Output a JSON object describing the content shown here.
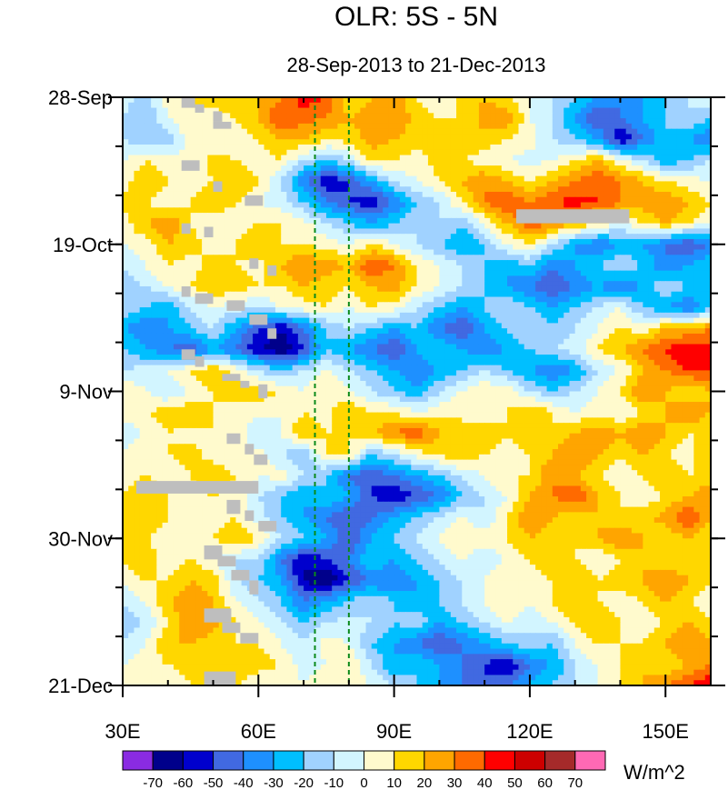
{
  "chart_data": {
    "type": "heatmap",
    "title": "OLR: 5S - 5N",
    "subtitle": "28-Sep-2013 to 21-Dec-2013",
    "x_axis": {
      "range": [
        30,
        160
      ],
      "ticks": [
        {
          "value": 30,
          "label": "30E"
        },
        {
          "value": 60,
          "label": "60E"
        },
        {
          "value": 90,
          "label": "90E"
        },
        {
          "value": 120,
          "label": "120E"
        },
        {
          "value": 150,
          "label": "150E"
        }
      ]
    },
    "y_axis": {
      "range_days": [
        0,
        84
      ],
      "direction": "top-to-bottom",
      "ticks": [
        {
          "day": 0,
          "label": "28-Sep"
        },
        {
          "day": 21,
          "label": "19-Oct"
        },
        {
          "day": 42,
          "label": "9-Nov"
        },
        {
          "day": 63,
          "label": "30-Nov"
        },
        {
          "day": 84,
          "label": "21-Dec"
        }
      ]
    },
    "reference_lines_longitude": [
      72.5,
      80
    ],
    "colorbar": {
      "units": "W/m^2",
      "levels": [
        "-70",
        "-60",
        "-50",
        "-40",
        "-30",
        "-20",
        "-10",
        "0",
        "10",
        "20",
        "30",
        "40",
        "50",
        "60",
        "70"
      ],
      "colors": [
        "#8a2be2",
        "#00008b",
        "#0000cd",
        "#4169e1",
        "#1e90ff",
        "#00bfff",
        "#a0d2ff",
        "#d2f5ff",
        "#fffacd",
        "#ffd700",
        "#ffa500",
        "#ff6a00",
        "#ff0000",
        "#cd0000",
        "#a52a2a",
        "#ff69b4"
      ]
    },
    "missing_color": "#bebebe",
    "grid_longitudes": [
      30,
      35,
      40,
      45,
      50,
      55,
      60,
      65,
      70,
      75,
      80,
      85,
      90,
      95,
      100,
      105,
      110,
      115,
      120,
      125,
      130,
      135,
      140,
      145,
      150,
      155,
      160
    ],
    "grid_days": [
      0,
      3,
      6,
      9,
      12,
      15,
      18,
      21,
      24,
      27,
      30,
      33,
      36,
      39,
      42,
      45,
      48,
      51,
      54,
      57,
      60,
      63,
      66,
      69,
      72,
      75,
      78,
      81,
      84
    ],
    "values": [
      [
        -5,
        -15,
        5,
        10,
        15,
        20,
        20,
        30,
        45,
        40,
        10,
        20,
        25,
        10,
        0,
        15,
        20,
        10,
        0,
        -10,
        -20,
        -30,
        -40,
        -30,
        -20,
        -10,
        0
      ],
      [
        -10,
        -20,
        0,
        10,
        5,
        10,
        20,
        40,
        35,
        30,
        20,
        25,
        30,
        15,
        10,
        10,
        25,
        30,
        0,
        -10,
        -30,
        -50,
        -40,
        -30,
        -20,
        -10,
        -20
      ],
      [
        -10,
        -20,
        -15,
        5,
        0,
        5,
        10,
        20,
        20,
        10,
        15,
        25,
        20,
        15,
        10,
        20,
        15,
        10,
        5,
        -10,
        -20,
        -30,
        -60,
        -40,
        -20,
        -30,
        -40
      ],
      [
        0,
        10,
        5,
        0,
        15,
        10,
        5,
        10,
        -10,
        -20,
        -10,
        15,
        10,
        5,
        15,
        10,
        5,
        0,
        -5,
        0,
        10,
        20,
        0,
        -10,
        -30,
        -20,
        -10
      ],
      [
        5,
        20,
        10,
        5,
        10,
        20,
        10,
        -10,
        -40,
        -60,
        -50,
        -30,
        -10,
        0,
        10,
        20,
        30,
        20,
        10,
        20,
        30,
        40,
        30,
        20,
        10,
        5,
        0
      ],
      [
        15,
        10,
        0,
        10,
        20,
        10,
        0,
        -5,
        -20,
        -40,
        -50,
        -60,
        -40,
        -20,
        -10,
        10,
        30,
        40,
        30,
        40,
        45,
        40,
        30,
        25,
        30,
        20,
        10
      ],
      [
        5,
        20,
        30,
        10,
        0,
        5,
        10,
        10,
        5,
        -10,
        -20,
        -30,
        -20,
        -10,
        -10,
        -20,
        0,
        20,
        40,
        30,
        20,
        10,
        0,
        10,
        20,
        10,
        0
      ],
      [
        0,
        5,
        20,
        15,
        5,
        10,
        20,
        10,
        10,
        5,
        0,
        10,
        0,
        -10,
        -20,
        -30,
        -20,
        0,
        10,
        -10,
        -30,
        -40,
        -30,
        -30,
        -40,
        -50,
        -40
      ],
      [
        -10,
        0,
        10,
        5,
        15,
        10,
        5,
        20,
        30,
        25,
        20,
        40,
        30,
        10,
        0,
        -10,
        -20,
        -30,
        -20,
        -40,
        -30,
        -20,
        -10,
        -20,
        -40,
        -30,
        -20
      ],
      [
        -20,
        -10,
        0,
        10,
        20,
        15,
        10,
        10,
        20,
        15,
        10,
        20,
        25,
        10,
        0,
        -10,
        -20,
        -30,
        -40,
        -50,
        -40,
        -30,
        -40,
        -30,
        -10,
        -20,
        -30
      ],
      [
        -10,
        -20,
        -30,
        -10,
        0,
        -5,
        -10,
        0,
        5,
        10,
        0,
        10,
        5,
        -10,
        -20,
        -30,
        -20,
        -10,
        -20,
        -30,
        -20,
        -10,
        0,
        -20,
        -30,
        -40,
        -20
      ],
      [
        -30,
        -40,
        -30,
        -20,
        -10,
        -30,
        -50,
        -60,
        -40,
        -20,
        -10,
        -20,
        -30,
        -20,
        -40,
        -50,
        -30,
        -20,
        -10,
        -20,
        -10,
        0,
        10,
        5,
        20,
        20,
        30
      ],
      [
        -20,
        -30,
        -40,
        -50,
        -30,
        -40,
        -60,
        -70,
        -50,
        -20,
        -30,
        -40,
        -50,
        -30,
        -20,
        -30,
        -40,
        -30,
        -20,
        -10,
        -5,
        10,
        20,
        30,
        40,
        50,
        45
      ],
      [
        -10,
        -5,
        0,
        10,
        20,
        5,
        -10,
        -20,
        -10,
        0,
        -10,
        -20,
        -30,
        -40,
        -30,
        -20,
        -10,
        -20,
        -30,
        -40,
        -30,
        -10,
        0,
        20,
        30,
        40,
        40
      ],
      [
        10,
        0,
        -10,
        0,
        10,
        20,
        15,
        10,
        0,
        10,
        0,
        -10,
        -20,
        -30,
        -10,
        0,
        10,
        5,
        -10,
        -20,
        -10,
        0,
        10,
        30,
        20,
        10,
        20
      ],
      [
        5,
        10,
        15,
        20,
        10,
        0,
        5,
        0,
        10,
        5,
        20,
        10,
        10,
        0,
        5,
        10,
        0,
        10,
        20,
        10,
        0,
        5,
        0,
        10,
        20,
        30,
        20
      ],
      [
        -10,
        0,
        10,
        5,
        10,
        10,
        -10,
        0,
        20,
        10,
        10,
        20,
        30,
        40,
        20,
        10,
        20,
        10,
        20,
        10,
        20,
        30,
        20,
        30,
        20,
        10,
        10
      ],
      [
        0,
        10,
        10,
        15,
        5,
        0,
        5,
        -10,
        -20,
        10,
        10,
        -20,
        -10,
        5,
        10,
        20,
        10,
        0,
        10,
        20,
        30,
        20,
        10,
        20,
        10,
        5,
        20
      ],
      [
        5,
        10,
        0,
        10,
        20,
        10,
        0,
        5,
        -10,
        -20,
        -40,
        -50,
        -40,
        -30,
        -20,
        -10,
        0,
        10,
        10,
        30,
        20,
        10,
        0,
        10,
        20,
        10,
        10
      ],
      [
        10,
        20,
        10,
        0,
        10,
        5,
        -10,
        -20,
        -30,
        -20,
        -30,
        -50,
        -60,
        -50,
        -40,
        -20,
        -10,
        0,
        20,
        30,
        40,
        20,
        10,
        5,
        10,
        20,
        30
      ],
      [
        20,
        15,
        10,
        5,
        0,
        10,
        -5,
        -20,
        -30,
        -40,
        -50,
        -40,
        -30,
        -20,
        -10,
        0,
        -10,
        10,
        30,
        20,
        10,
        20,
        10,
        15,
        25,
        40,
        20
      ],
      [
        15,
        10,
        5,
        0,
        10,
        20,
        10,
        -10,
        -20,
        -30,
        -50,
        -30,
        -20,
        -10,
        0,
        10,
        5,
        10,
        20,
        10,
        10,
        20,
        30,
        20,
        10,
        20,
        10
      ],
      [
        10,
        20,
        0,
        10,
        0,
        -10,
        -10,
        -40,
        -60,
        -50,
        -40,
        -20,
        -30,
        -20,
        -10,
        0,
        -10,
        0,
        10,
        20,
        10,
        0,
        10,
        20,
        10,
        15,
        10
      ],
      [
        0,
        10,
        10,
        20,
        15,
        -10,
        -20,
        -30,
        -60,
        -70,
        -50,
        -40,
        -40,
        -30,
        -20,
        -10,
        0,
        10,
        5,
        10,
        20,
        10,
        15,
        20,
        30,
        20,
        10
      ],
      [
        -10,
        0,
        20,
        25,
        20,
        0,
        -10,
        -20,
        -40,
        -30,
        -20,
        -10,
        -20,
        -30,
        -20,
        -10,
        0,
        10,
        0,
        10,
        20,
        10,
        5,
        10,
        20,
        10,
        0
      ],
      [
        -20,
        -10,
        10,
        30,
        25,
        10,
        0,
        -10,
        -20,
        -10,
        -5,
        -10,
        -20,
        -10,
        -30,
        -20,
        -10,
        0,
        -10,
        0,
        10,
        20,
        10,
        0,
        10,
        20,
        10
      ],
      [
        -10,
        0,
        20,
        20,
        15,
        10,
        10,
        0,
        -10,
        5,
        0,
        -20,
        -30,
        -40,
        -50,
        -40,
        -30,
        -20,
        -10,
        -20,
        0,
        10,
        10,
        10,
        20,
        30,
        20
      ],
      [
        0,
        5,
        10,
        15,
        10,
        20,
        15,
        10,
        -5,
        0,
        10,
        -10,
        -30,
        -20,
        -30,
        -40,
        -50,
        -60,
        -40,
        -30,
        -10,
        0,
        10,
        20,
        10,
        20,
        30
      ],
      [
        10,
        5,
        0,
        10,
        20,
        10,
        0,
        5,
        0,
        10,
        5,
        0,
        -10,
        -20,
        -30,
        -40,
        -50,
        -40,
        -30,
        -20,
        -10,
        0,
        10,
        20,
        30,
        40,
        50
      ]
    ],
    "missing_regions": [
      {
        "lon": [
          43,
          46
        ],
        "day": [
          0,
          1.5
        ]
      },
      {
        "lon": [
          46,
          48
        ],
        "day": [
          1,
          2.2
        ]
      },
      {
        "lon": [
          50,
          52
        ],
        "day": [
          2,
          3.5
        ]
      },
      {
        "lon": [
          50,
          54
        ],
        "day": [
          3.5,
          4.5
        ]
      },
      {
        "lon": [
          43,
          47
        ],
        "day": [
          9,
          10.5
        ]
      },
      {
        "lon": [
          50,
          52
        ],
        "day": [
          12,
          13.5
        ]
      },
      {
        "lon": [
          57,
          61
        ],
        "day": [
          14,
          15.5
        ]
      },
      {
        "lon": [
          43,
          45
        ],
        "day": [
          18,
          19.5
        ]
      },
      {
        "lon": [
          48,
          50
        ],
        "day": [
          18.5,
          20
        ]
      },
      {
        "lon": [
          58,
          60
        ],
        "day": [
          23,
          24.5
        ]
      },
      {
        "lon": [
          62,
          64
        ],
        "day": [
          24,
          25.5
        ]
      },
      {
        "lon": [
          43,
          45
        ],
        "day": [
          27,
          28.5
        ]
      },
      {
        "lon": [
          46,
          50
        ],
        "day": [
          28,
          29.5
        ]
      },
      {
        "lon": [
          53,
          57
        ],
        "day": [
          29,
          30.5
        ]
      },
      {
        "lon": [
          58,
          62
        ],
        "day": [
          31,
          32.5
        ]
      },
      {
        "lon": [
          62,
          64
        ],
        "day": [
          33,
          34.5
        ]
      },
      {
        "lon": [
          43,
          46
        ],
        "day": [
          36,
          37.5
        ]
      },
      {
        "lon": [
          46,
          48
        ],
        "day": [
          37,
          38.5
        ]
      },
      {
        "lon": [
          52,
          56
        ],
        "day": [
          39.5,
          40.5
        ]
      },
      {
        "lon": [
          56,
          58
        ],
        "day": [
          40.5,
          41.5
        ]
      },
      {
        "lon": [
          60,
          62
        ],
        "day": [
          41,
          43
        ]
      },
      {
        "lon": [
          53,
          56
        ],
        "day": [
          48,
          49.5
        ]
      },
      {
        "lon": [
          57,
          59
        ],
        "day": [
          49.5,
          51
        ]
      },
      {
        "lon": [
          59,
          62
        ],
        "day": [
          51,
          52.5
        ]
      },
      {
        "lon": [
          33,
          60
        ],
        "day": [
          54.8,
          56.6
        ]
      },
      {
        "lon": [
          53,
          56
        ],
        "day": [
          57.5,
          59.5
        ]
      },
      {
        "lon": [
          57,
          59
        ],
        "day": [
          59,
          60.5
        ]
      },
      {
        "lon": [
          60,
          64
        ],
        "day": [
          60.5,
          62
        ]
      },
      {
        "lon": [
          48,
          52
        ],
        "day": [
          64,
          66
        ]
      },
      {
        "lon": [
          51,
          55
        ],
        "day": [
          65.5,
          67
        ]
      },
      {
        "lon": [
          54,
          58
        ],
        "day": [
          67.5,
          69
        ]
      },
      {
        "lon": [
          58,
          60
        ],
        "day": [
          69,
          71
        ]
      },
      {
        "lon": [
          48,
          54
        ],
        "day": [
          73,
          75
        ]
      },
      {
        "lon": [
          52,
          56
        ],
        "day": [
          75,
          76.5
        ]
      },
      {
        "lon": [
          56,
          60
        ],
        "day": [
          76.5,
          78
        ]
      },
      {
        "lon": [
          48,
          55
        ],
        "day": [
          82,
          84
        ]
      },
      {
        "lon": [
          117,
          142
        ],
        "day": [
          16,
          18
        ]
      }
    ]
  }
}
